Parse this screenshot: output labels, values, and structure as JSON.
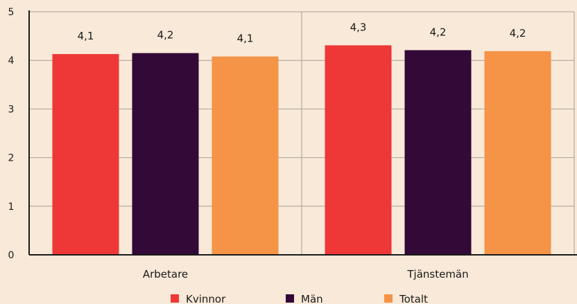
{
  "chart_data": {
    "type": "bar",
    "categories": [
      "Arbetare",
      "Tjänstemän"
    ],
    "series": [
      {
        "name": "Kvinnor",
        "values": [
          4.13,
          4.31
        ],
        "labels": [
          "4,1",
          "4,3"
        ],
        "color": "#ee3737"
      },
      {
        "name": "Män",
        "values": [
          4.15,
          4.21
        ],
        "labels": [
          "4,2",
          "4,2"
        ],
        "color": "#330937"
      },
      {
        "name": "Totalt",
        "values": [
          4.08,
          4.19
        ],
        "labels": [
          "4,1",
          "4,2"
        ],
        "color": "#f59347"
      }
    ],
    "y_ticks": [
      "0",
      "1",
      "2",
      "3",
      "4",
      "5"
    ],
    "ylim": [
      0,
      5
    ],
    "grid": true,
    "legend_position": "bottom-center",
    "title": "",
    "xlabel": "",
    "ylabel": ""
  }
}
